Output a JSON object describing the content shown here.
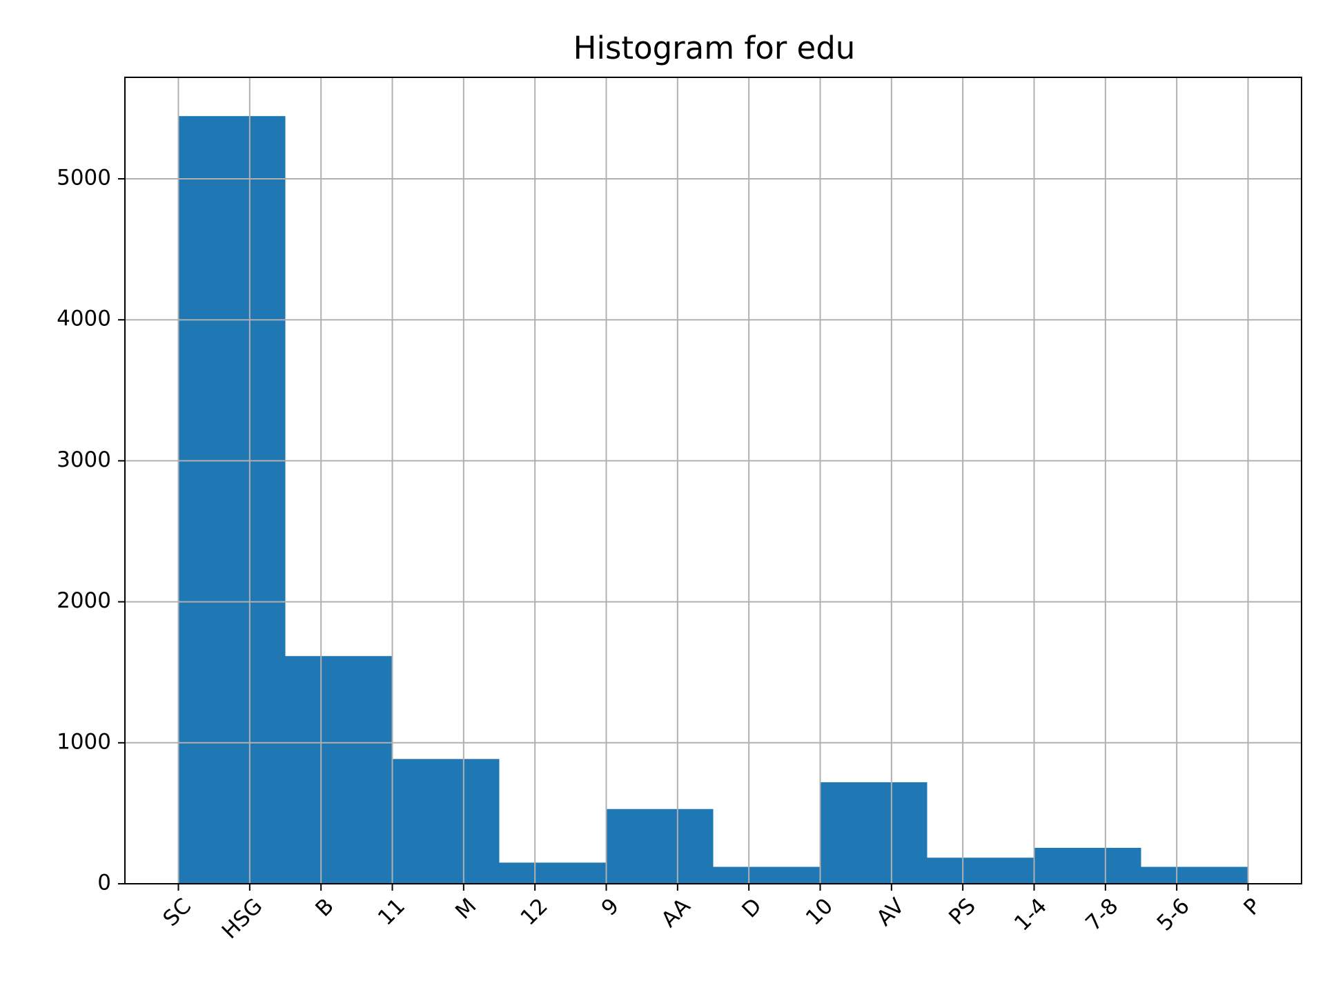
{
  "chart_data": {
    "type": "bar",
    "title": "Histogram for edu",
    "xlabel": "",
    "ylabel": "",
    "categories": [
      "SC",
      "HSG",
      "B",
      "11",
      "M",
      "12",
      "9",
      "AA",
      "D",
      "10",
      "AV",
      "PS",
      "1-4",
      "7-8",
      "5-6",
      "P"
    ],
    "xlim": [
      -0.75,
      15.75
    ],
    "bins": [
      {
        "start": 0,
        "end": 1.5,
        "value": 5445
      },
      {
        "start": 1.5,
        "end": 3,
        "value": 1615
      },
      {
        "start": 3,
        "end": 4.5,
        "value": 885
      },
      {
        "start": 4.5,
        "end": 6,
        "value": 150
      },
      {
        "start": 6,
        "end": 7.5,
        "value": 530
      },
      {
        "start": 7.5,
        "end": 9,
        "value": 120
      },
      {
        "start": 9,
        "end": 10.5,
        "value": 720
      },
      {
        "start": 10.5,
        "end": 12,
        "value": 185
      },
      {
        "start": 12,
        "end": 13.5,
        "value": 255
      },
      {
        "start": 13.5,
        "end": 15,
        "value": 120
      }
    ],
    "ylim": [
      0,
      5720
    ],
    "yticks": [
      0,
      1000,
      2000,
      3000,
      4000,
      5000
    ],
    "grid": true,
    "bar_color": "#1f77b4",
    "grid_color": "#b0b0b0"
  }
}
